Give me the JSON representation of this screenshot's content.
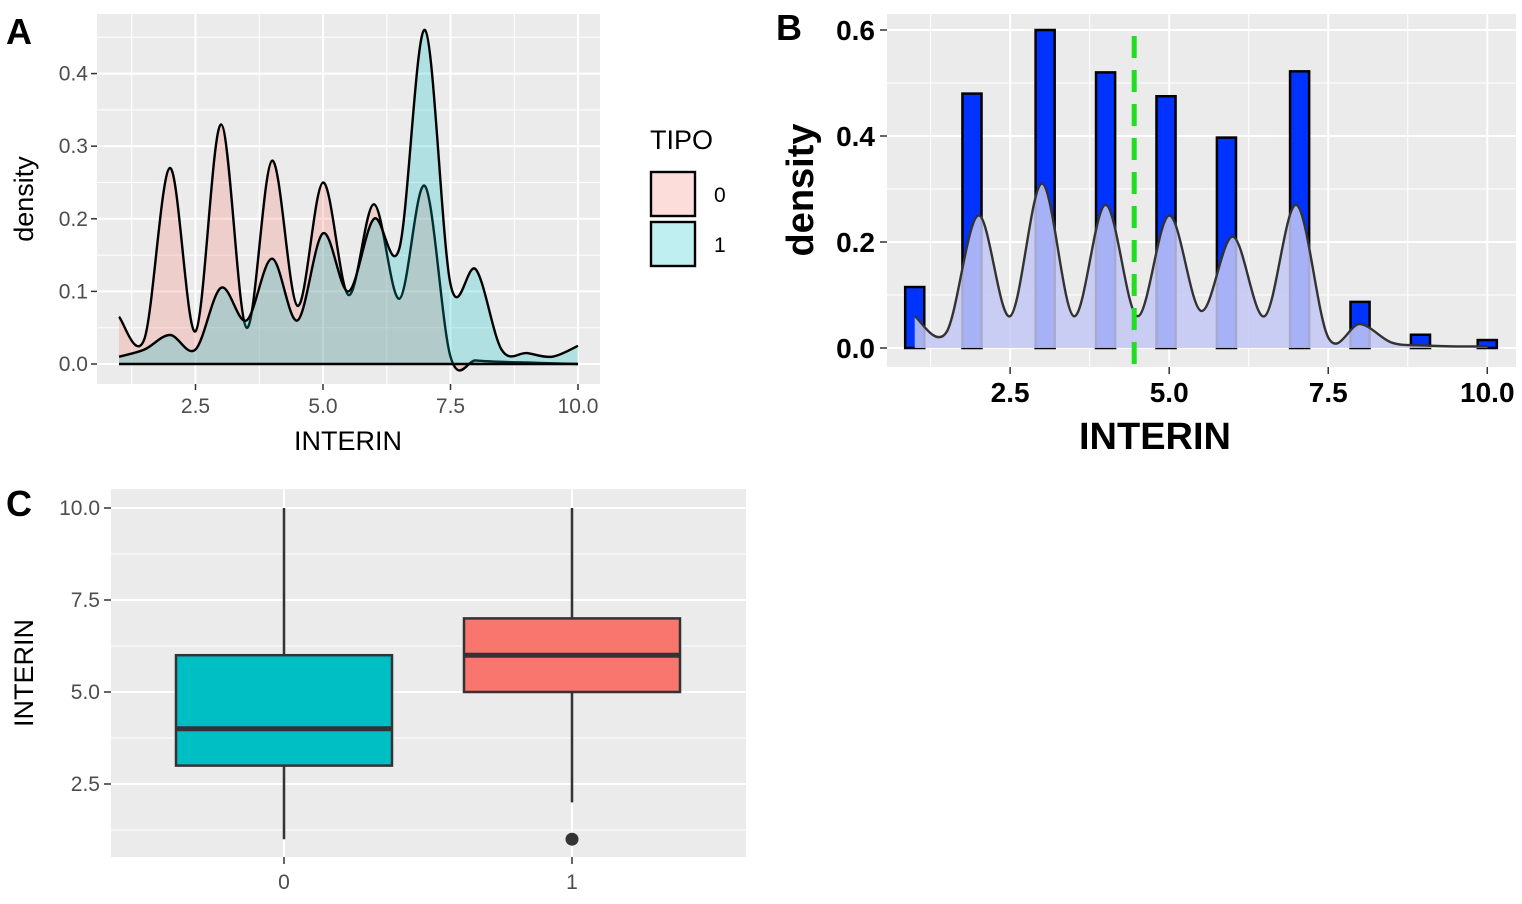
{
  "colors": {
    "panel_bg": "#ebebeb",
    "grid": "#ffffff",
    "fill_tipo0": "#f8766d",
    "fill_tipo1": "#00bfc4",
    "hist_fill": "#0033ff",
    "mean_line": "#22dd22",
    "density_overlay": "#c4c8f4",
    "box_tipo0": "#00bfc4",
    "box_tipo1": "#f8766d"
  },
  "panel_labels": {
    "a": "A",
    "b": "B",
    "c": "C"
  },
  "chart_data": [
    {
      "panel": "A",
      "type": "area",
      "xlabel": "INTERIN",
      "ylabel": "density",
      "xlim": [
        1,
        10
      ],
      "ylim": [
        0,
        0.46
      ],
      "x_ticks": [
        2.5,
        5.0,
        7.5,
        10.0
      ],
      "x_tick_labels": [
        "2.5",
        "5.0",
        "7.5",
        "10.0"
      ],
      "y_ticks": [
        0,
        0.1,
        0.2,
        0.3,
        0.4
      ],
      "y_tick_labels": [
        "0.0",
        "0.1",
        "0.2",
        "0.3",
        "0.4"
      ],
      "legend": {
        "title": "TIPO",
        "position": "right",
        "entries": [
          "0",
          "1"
        ]
      },
      "series": [
        {
          "name": "0",
          "x": [
            1.0,
            1.5,
            2.0,
            2.5,
            3.0,
            3.5,
            4.0,
            4.5,
            5.0,
            5.5,
            6.0,
            6.5,
            7.0,
            7.5,
            8.0,
            8.5,
            9.0,
            9.5,
            10.0
          ],
          "y": [
            0.065,
            0.035,
            0.27,
            0.045,
            0.33,
            0.05,
            0.28,
            0.08,
            0.25,
            0.095,
            0.22,
            0.09,
            0.245,
            0.01,
            0.005,
            0.003,
            0.002,
            0.001,
            0.0
          ]
        },
        {
          "name": "1",
          "x": [
            1.0,
            1.5,
            2.0,
            2.5,
            3.0,
            3.5,
            4.0,
            4.5,
            5.0,
            5.5,
            6.0,
            6.5,
            7.0,
            7.5,
            8.0,
            8.5,
            9.0,
            9.5,
            10.0
          ],
          "y": [
            0.01,
            0.02,
            0.04,
            0.02,
            0.105,
            0.06,
            0.145,
            0.06,
            0.18,
            0.1,
            0.2,
            0.16,
            0.46,
            0.11,
            0.13,
            0.02,
            0.015,
            0.01,
            0.025
          ]
        }
      ]
    },
    {
      "panel": "B",
      "type": "bar",
      "xlabel": "INTERIN",
      "ylabel": "density",
      "xlim": [
        0.8,
        10.2
      ],
      "ylim": [
        0,
        0.6
      ],
      "x_ticks": [
        2.5,
        5.0,
        7.5,
        10.0
      ],
      "x_tick_labels": [
        "2.5",
        "5.0",
        "7.5",
        "10.0"
      ],
      "y_ticks": [
        0,
        0.2,
        0.4,
        0.6
      ],
      "y_tick_labels": [
        "0.0",
        "0.2",
        "0.4",
        "0.6"
      ],
      "bin_width": 0.3,
      "bins": [
        {
          "x": 1.0,
          "value": 0.115
        },
        {
          "x": 1.9,
          "value": 0.48
        },
        {
          "x": 3.05,
          "value": 0.6
        },
        {
          "x": 4.0,
          "value": 0.52
        },
        {
          "x": 4.95,
          "value": 0.475
        },
        {
          "x": 5.9,
          "value": 0.397
        },
        {
          "x": 7.05,
          "value": 0.522
        },
        {
          "x": 8.0,
          "value": 0.087
        },
        {
          "x": 8.95,
          "value": 0.025
        },
        {
          "x": 10.0,
          "value": 0.015
        }
      ],
      "mean": 4.45,
      "density_curve": {
        "x": [
          1.0,
          1.5,
          2.0,
          2.5,
          3.0,
          3.5,
          4.0,
          4.5,
          5.0,
          5.5,
          6.0,
          6.5,
          7.0,
          7.5,
          8.0,
          8.5,
          9.0,
          9.5,
          10.0
        ],
        "y": [
          0.06,
          0.03,
          0.25,
          0.06,
          0.31,
          0.06,
          0.27,
          0.06,
          0.25,
          0.07,
          0.21,
          0.06,
          0.27,
          0.02,
          0.045,
          0.01,
          0.005,
          0.003,
          0.003
        ]
      }
    },
    {
      "panel": "C",
      "type": "box",
      "xlabel": "",
      "ylabel": "INTERIN",
      "ylim": [
        0.7,
        10.4
      ],
      "categories": [
        "0",
        "1"
      ],
      "y_ticks": [
        2.5,
        5.0,
        7.5,
        10.0
      ],
      "y_tick_labels": [
        "2.5",
        "5.0",
        "7.5",
        "10.0"
      ],
      "boxes": [
        {
          "category": "0",
          "whisker_low": 1,
          "q1": 3,
          "median": 4,
          "q3": 6,
          "whisker_high": 10,
          "outliers": []
        },
        {
          "category": "1",
          "whisker_low": 2,
          "q1": 5,
          "median": 6,
          "q3": 7,
          "whisker_high": 10,
          "outliers": [
            1
          ]
        }
      ]
    }
  ]
}
